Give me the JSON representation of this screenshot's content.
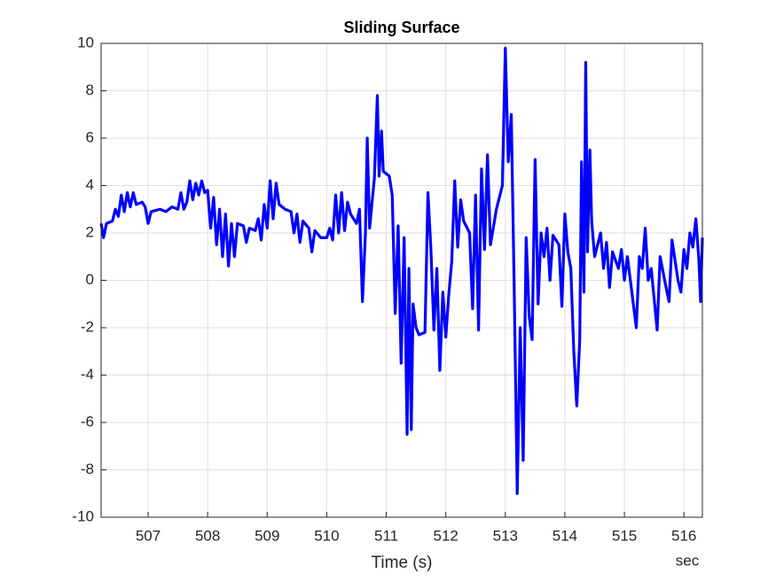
{
  "chart_data": {
    "type": "line",
    "title": "Sliding Surface",
    "xlabel": "Time (s)",
    "annotation": "sec",
    "x": [
      506.21,
      506.25,
      506.3,
      506.4,
      506.45,
      506.5,
      506.55,
      506.6,
      506.65,
      506.7,
      506.75,
      506.8,
      506.9,
      506.95,
      507.0,
      507.05,
      507.2,
      507.3,
      507.4,
      507.5,
      507.55,
      507.6,
      507.65,
      507.7,
      507.75,
      507.8,
      507.85,
      507.9,
      507.95,
      508.0,
      508.05,
      508.1,
      508.15,
      508.2,
      508.25,
      508.3,
      508.35,
      508.4,
      508.45,
      508.5,
      508.6,
      508.65,
      508.7,
      508.8,
      508.85,
      508.9,
      508.95,
      509.0,
      509.05,
      509.1,
      509.15,
      509.2,
      509.3,
      509.4,
      509.45,
      509.5,
      509.55,
      509.6,
      509.7,
      509.75,
      509.8,
      509.9,
      510.0,
      510.05,
      510.1,
      510.15,
      510.2,
      510.25,
      510.3,
      510.35,
      510.4,
      510.5,
      510.55,
      510.6,
      510.65,
      510.68,
      510.72,
      510.8,
      510.85,
      510.88,
      510.92,
      510.95,
      511.05,
      511.1,
      511.15,
      511.2,
      511.25,
      511.3,
      511.35,
      511.38,
      511.42,
      511.45,
      511.5,
      511.55,
      511.65,
      511.7,
      511.75,
      511.8,
      511.85,
      511.9,
      511.95,
      512.0,
      512.05,
      512.1,
      512.15,
      512.2,
      512.25,
      512.3,
      512.4,
      512.45,
      512.5,
      512.55,
      512.6,
      512.65,
      512.7,
      512.75,
      512.85,
      512.95,
      513.0,
      513.05,
      513.1,
      513.15,
      513.2,
      513.25,
      513.3,
      513.35,
      513.4,
      513.45,
      513.5,
      513.55,
      513.6,
      513.65,
      513.7,
      513.75,
      513.8,
      513.9,
      513.95,
      514.0,
      514.05,
      514.1,
      514.15,
      514.2,
      514.25,
      514.28,
      514.32,
      514.35,
      514.38,
      514.42,
      514.45,
      514.5,
      514.6,
      514.65,
      514.7,
      514.75,
      514.8,
      514.9,
      514.95,
      515.0,
      515.05,
      515.15,
      515.2,
      515.25,
      515.3,
      515.35,
      515.4,
      515.45,
      515.5,
      515.55,
      515.6,
      515.7,
      515.75,
      515.8,
      515.9,
      515.95,
      516.0,
      516.05,
      516.1,
      516.15,
      516.2,
      516.25,
      516.28,
      516.31
    ],
    "series": [
      {
        "color": "#0000ff",
        "values": [
          2.4,
          1.8,
          2.4,
          2.5,
          3.0,
          2.7,
          3.6,
          2.9,
          3.7,
          3.1,
          3.7,
          3.2,
          3.3,
          3.1,
          2.4,
          2.9,
          3.0,
          2.9,
          3.1,
          3.0,
          3.7,
          3.0,
          3.3,
          4.2,
          3.4,
          4.1,
          3.6,
          4.2,
          3.7,
          3.8,
          2.2,
          3.5,
          1.5,
          3.0,
          1.0,
          2.8,
          0.6,
          2.4,
          1.0,
          2.4,
          2.3,
          1.6,
          2.2,
          2.1,
          2.6,
          1.7,
          3.2,
          2.2,
          4.2,
          2.6,
          4.1,
          3.2,
          3.0,
          2.9,
          2.0,
          2.8,
          1.6,
          2.5,
          2.2,
          1.2,
          2.1,
          1.8,
          1.8,
          2.2,
          1.7,
          3.6,
          2.0,
          3.7,
          2.1,
          3.3,
          2.8,
          2.4,
          3.0,
          -0.9,
          2.0,
          6.0,
          2.2,
          4.3,
          7.8,
          4.4,
          6.3,
          4.6,
          4.4,
          3.6,
          -1.4,
          2.3,
          -3.5,
          1.8,
          -6.5,
          0.5,
          -6.3,
          -1.0,
          -2.0,
          -2.3,
          -2.2,
          3.7,
          1.3,
          -2.1,
          0.5,
          -3.8,
          -0.5,
          -2.4,
          -0.6,
          0.8,
          4.2,
          1.4,
          3.4,
          2.5,
          2.0,
          -1.2,
          3.6,
          -2.1,
          4.7,
          1.3,
          5.3,
          1.5,
          3.0,
          4.0,
          9.8,
          5.0,
          7.0,
          -0.5,
          -9.0,
          -2.0,
          -7.6,
          1.8,
          -1.5,
          -2.5,
          5.1,
          -1.0,
          2.0,
          1.0,
          2.2,
          0.0,
          1.9,
          1.5,
          -1.1,
          2.8,
          1.2,
          0.5,
          -3.0,
          -5.3,
          -2.5,
          5.0,
          -0.5,
          9.2,
          1.2,
          5.5,
          2.5,
          1.0,
          2.0,
          0.5,
          1.6,
          -0.3,
          1.2,
          0.5,
          1.3,
          0.0,
          1.0,
          -1.0,
          -2.0,
          1.0,
          0.5,
          2.2,
          0.0,
          0.5,
          -0.8,
          -2.1,
          1.0,
          -0.3,
          -0.9,
          1.7,
          0.0,
          -0.5,
          1.3,
          0.5,
          2.0,
          1.4,
          2.6,
          0.9,
          -0.9,
          1.8
        ]
      }
    ],
    "xlim": [
      506.21,
      516.31
    ],
    "xticks": [
      507,
      508,
      509,
      510,
      511,
      512,
      513,
      514,
      515,
      516
    ],
    "ylim": [
      -10,
      10
    ],
    "yticks": [
      -10,
      -8,
      -6,
      -4,
      -2,
      0,
      2,
      4,
      6,
      8,
      10
    ],
    "grid": true
  }
}
